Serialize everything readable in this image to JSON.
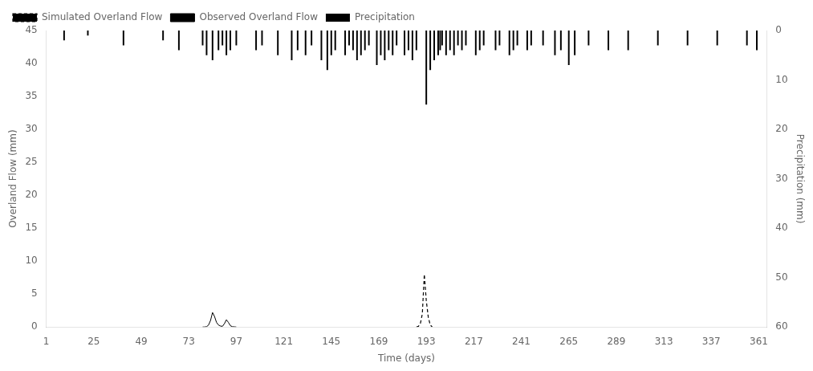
{
  "chart_data": {
    "type": "line",
    "xlabel": "Time (days)",
    "ylabel": "Overland Flow (mm)",
    "y2label": "Precipitation (mm)",
    "xlim": [
      1,
      365
    ],
    "xticks": [
      1,
      25,
      49,
      73,
      97,
      121,
      145,
      169,
      193,
      217,
      241,
      265,
      289,
      313,
      337,
      361
    ],
    "ylim": [
      0,
      45
    ],
    "yticks": [
      0,
      5,
      10,
      15,
      20,
      25,
      30,
      35,
      40,
      45
    ],
    "y2lim": [
      60,
      0
    ],
    "y2ticks": [
      0,
      10,
      20,
      30,
      40,
      50,
      60
    ],
    "grid": false,
    "legend": "upper left",
    "series": [
      {
        "name": "Precipitation",
        "type": "bar",
        "axis": "y2",
        "color": "#000000",
        "x": [
          10,
          22,
          40,
          60,
          68,
          80,
          82,
          85,
          88,
          90,
          92,
          94,
          97,
          107,
          110,
          118,
          125,
          128,
          132,
          135,
          140,
          143,
          145,
          147,
          152,
          154,
          156,
          158,
          160,
          162,
          164,
          168,
          170,
          172,
          174,
          176,
          178,
          182,
          184,
          186,
          188,
          193,
          195,
          197,
          199,
          200,
          201,
          203,
          205,
          207,
          209,
          211,
          213,
          218,
          220,
          222,
          228,
          230,
          235,
          237,
          239,
          244,
          246,
          252,
          258,
          261,
          265,
          268,
          275,
          285,
          295,
          310,
          325,
          340,
          355,
          360
        ],
        "values": [
          2,
          1,
          3,
          2,
          4,
          3,
          5,
          6,
          4,
          3,
          5,
          4,
          3,
          4,
          3,
          5,
          6,
          4,
          5,
          3,
          6,
          8,
          5,
          4,
          5,
          3,
          4,
          6,
          5,
          4,
          3,
          7,
          5,
          6,
          4,
          5,
          3,
          5,
          4,
          6,
          4,
          15,
          8,
          6,
          5,
          4,
          3,
          5,
          4,
          5,
          3,
          4,
          3,
          5,
          4,
          3,
          4,
          3,
          5,
          4,
          3,
          4,
          3,
          3,
          5,
          4,
          7,
          5,
          3,
          4,
          4,
          3,
          3,
          3,
          3,
          4
        ]
      },
      {
        "name": "Simulated Overland Flow",
        "type": "line",
        "line_style": "dashed",
        "color": "#000000",
        "x": [
          188,
          189,
          190,
          191,
          192,
          193,
          194,
          195,
          196
        ],
        "values": [
          0,
          0.1,
          0.5,
          2.0,
          8.0,
          4.0,
          1.5,
          0.3,
          0
        ]
      },
      {
        "name": "Observed Overland Flow",
        "type": "line",
        "line_style": "solid",
        "color": "#000000",
        "x": [
          80,
          81,
          82,
          83,
          84,
          85,
          86,
          87,
          88,
          89,
          90,
          91,
          92,
          93,
          94,
          95,
          96,
          97
        ],
        "values": [
          0,
          0,
          0.05,
          0.3,
          1.0,
          2.2,
          1.6,
          0.7,
          0.3,
          0.15,
          0.1,
          0.5,
          1.1,
          0.7,
          0.2,
          0.05,
          0.02,
          0
        ]
      }
    ]
  }
}
